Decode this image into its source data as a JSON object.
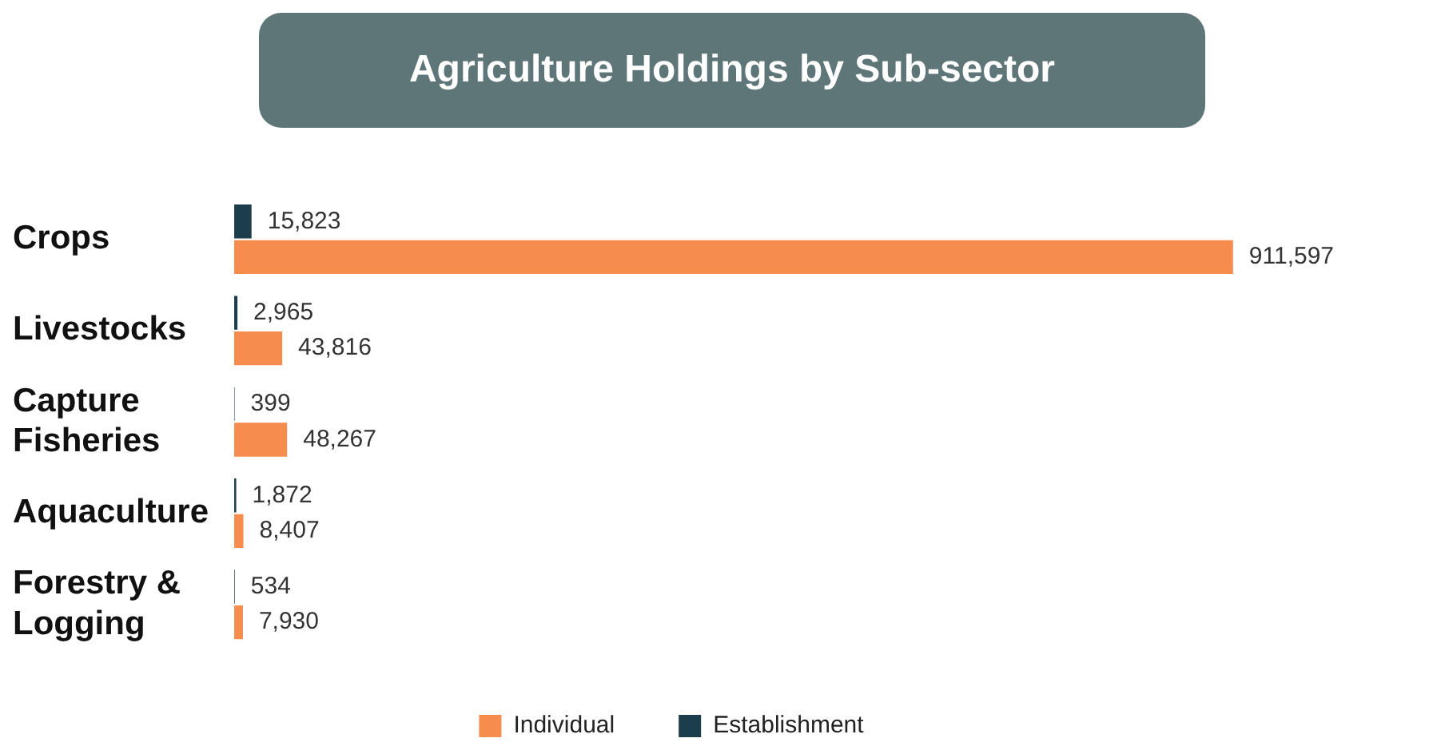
{
  "chart_data": {
    "type": "bar",
    "title": "Agriculture Holdings by Sub-sector",
    "orientation": "horizontal",
    "categories": [
      "Crops",
      "Livestocks",
      "Capture Fisheries",
      "Aquaculture",
      "Forestry & Logging"
    ],
    "series": [
      {
        "name": "Establishment",
        "color": "#1c3d4c",
        "values": [
          15823,
          2965,
          399,
          1872,
          534
        ],
        "value_labels": [
          "15,823",
          "2,965",
          "399",
          "1,872",
          "534"
        ]
      },
      {
        "name": "Individual",
        "color": "#f68c4e",
        "values": [
          911597,
          43816,
          48267,
          8407,
          7930
        ],
        "value_labels": [
          "911,597",
          "43,816",
          "48,267",
          "8,407",
          "7,930"
        ]
      }
    ],
    "legend": "bottom"
  }
}
